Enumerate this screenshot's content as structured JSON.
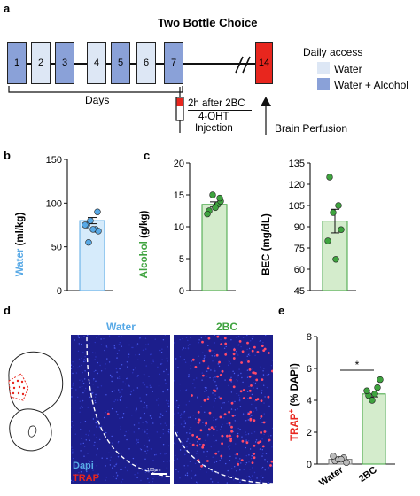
{
  "panel_a": {
    "label": "a",
    "title": "Two Bottle Choice",
    "days": [
      "1",
      "2",
      "3",
      "4",
      "5",
      "6",
      "7",
      "14"
    ],
    "days_label": "Days",
    "legend_title": "Daily access",
    "legend_items": [
      {
        "label": "Water",
        "color": "#dde7f5"
      },
      {
        "label": "Water + Alcohol",
        "color": "#8aa1d8"
      }
    ],
    "injection_line1": "2h after 2BC",
    "injection_line2": "4-OHT",
    "injection_line3": "Injection",
    "perfusion_label": "Brain Perfusion",
    "day_colors": {
      "alcohol": "#8aa1d8",
      "water": "#dde7f5",
      "final": "#e8261e"
    }
  },
  "panel_b": {
    "label": "b",
    "ylabel_colored": "Water",
    "ylabel_rest": " (ml/kg)",
    "yticks": [
      "0",
      "50",
      "100",
      "150"
    ],
    "color": "#58a9e6"
  },
  "panel_c": {
    "label": "c",
    "alcohol_ylabel_colored": "Alcohol",
    "alcohol_ylabel_rest": " (g/kg)",
    "alcohol_yticks": [
      "0",
      "5",
      "10",
      "15",
      "20"
    ],
    "bec_ylabel": "BEC (mg/dL)",
    "bec_yticks": [
      "45",
      "60",
      "75",
      "90",
      "105",
      "120",
      "135"
    ],
    "color": "#3fa33f"
  },
  "panel_d": {
    "label": "d",
    "water_title": "Water",
    "bec_title": "2BC",
    "dapi_label": "Dapi",
    "trap_label": "TRAP",
    "scalebar": "100µm"
  },
  "panel_e": {
    "label": "e",
    "ylabel_colored": "TRAP",
    "ylabel_rest": " (% DAPI)",
    "yticks": [
      "0",
      "2",
      "4",
      "6",
      "8"
    ],
    "significance": "*",
    "categories": [
      "Water",
      "2BC"
    ]
  },
  "chart_data": [
    {
      "type": "bar",
      "categories": [
        ""
      ],
      "ylim": [
        0,
        150
      ],
      "values": [
        80
      ],
      "points": [
        [
          75,
          70,
          80,
          68,
          75,
          70,
          90,
          55
        ]
      ],
      "xlabel": "",
      "ylabel": "Water (ml/kg)"
    },
    {
      "type": "bar",
      "categories": [
        ""
      ],
      "ylim": [
        0,
        20
      ],
      "values": [
        13.5
      ],
      "points": [
        [
          12.5,
          13.5,
          15,
          14,
          12,
          13,
          14.5
        ]
      ],
      "xlabel": "",
      "ylabel": "Alcohol (g/kg)"
    },
    {
      "type": "bar",
      "categories": [
        ""
      ],
      "ylim": [
        45,
        135
      ],
      "values": [
        94
      ],
      "points": [
        [
          125,
          105,
          100,
          88,
          80,
          67
        ]
      ],
      "xlabel": "",
      "ylabel": "BEC (mg/dL)"
    },
    {
      "type": "bar",
      "categories": [
        "Water",
        "2BC"
      ],
      "ylim": [
        0,
        8
      ],
      "values": [
        0.3,
        4.4
      ],
      "points": [
        [
          0.2,
          0.4,
          0.3,
          0.1,
          0.5,
          0.3
        ],
        [
          4.3,
          4.8,
          4.0,
          5.3,
          4.6,
          4.4
        ]
      ],
      "xlabel": "",
      "ylabel": "TRAP+ (% DAPI)"
    }
  ]
}
